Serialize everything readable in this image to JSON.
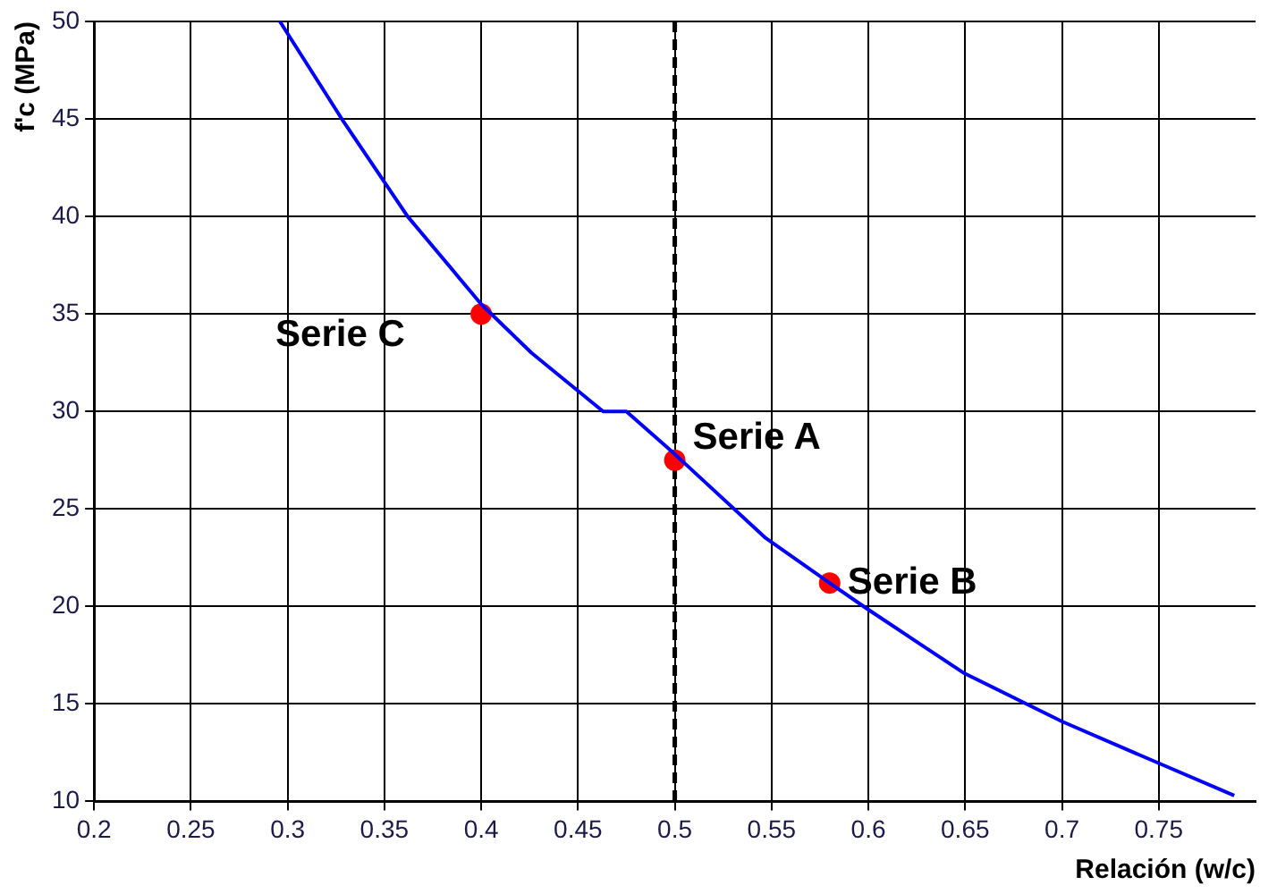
{
  "chart_data": {
    "type": "line",
    "xlabel": "Relación (w/c)",
    "ylabel": "f'c (MPa)",
    "xlim": [
      0.2,
      0.8
    ],
    "ylim": [
      10,
      50
    ],
    "xticks": [
      0.2,
      0.25,
      0.3,
      0.35,
      0.4,
      0.45,
      0.5,
      0.55,
      0.6,
      0.65,
      0.7,
      0.75
    ],
    "yticks": [
      10,
      15,
      20,
      25,
      30,
      35,
      40,
      45,
      50
    ],
    "grid": true,
    "legend": false,
    "marker": "none",
    "series": [
      {
        "color": "#0000ff",
        "x": [
          0.296,
          0.328,
          0.362,
          0.4,
          0.426,
          0.463,
          0.475,
          0.499,
          0.547,
          0.58,
          0.599,
          0.649,
          0.7,
          0.749,
          0.789
        ],
        "values": [
          50,
          45,
          40,
          35.5,
          33,
          30,
          30,
          27.9,
          23.5,
          21.2,
          19.9,
          16.6,
          14.1,
          12,
          10.3
        ]
      },
      {
        "type": "scatter",
        "name": "Serie C",
        "color": "#ff0000",
        "marker": "circle",
        "x": [
          0.4
        ],
        "values": [
          35
        ]
      },
      {
        "type": "scatter",
        "name": "Serie A",
        "color": "#ff0000",
        "marker": "circle",
        "x": [
          0.5
        ],
        "values": [
          27.5
        ]
      },
      {
        "type": "scatter",
        "name": "Serie B",
        "color": "#ff0000",
        "marker": "circle",
        "x": [
          0.58
        ],
        "values": [
          21.2
        ]
      }
    ],
    "ref_lines": [
      {
        "axis": "x",
        "value": 0.5,
        "color": "#000000",
        "line_style": "dashed"
      }
    ]
  }
}
